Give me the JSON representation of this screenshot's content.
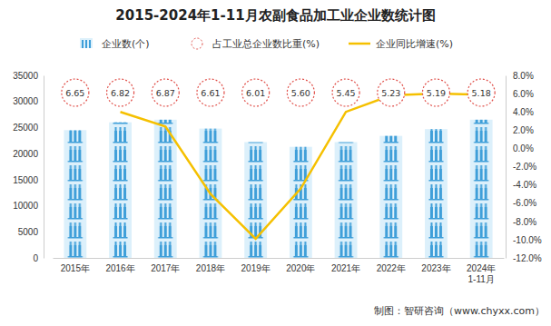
{
  "chart_data": {
    "type": "bar",
    "title": "2015-2024年1-11月农副食品加工业企业数统计图",
    "categories": [
      "2015年",
      "2016年",
      "2017年",
      "2018年",
      "2019年",
      "2020年",
      "2021年",
      "2022年",
      "2023年",
      "2024年\n1-11月"
    ],
    "series": [
      {
        "name": "企业数(个)",
        "type": "bar",
        "color": "#3f9fd9",
        "values": [
          24500,
          26000,
          26500,
          24800,
          22200,
          21300,
          22200,
          23400,
          24700,
          26500
        ]
      },
      {
        "name": "占工业总企业数比重(%)",
        "type": "scatter",
        "marker": "circle",
        "line_style": "dashed",
        "color": "#e0504a",
        "data_labels": true,
        "values": [
          6.65,
          6.82,
          6.87,
          6.61,
          6.01,
          5.6,
          5.45,
          5.23,
          5.19,
          5.18
        ],
        "value_labels": [
          "6.65",
          "6.82",
          "6.87",
          "6.61",
          "6.01",
          "5.60",
          "5.45",
          "5.23",
          "5.19",
          "5.18"
        ]
      },
      {
        "name": "企业同比增速(%)",
        "type": "line",
        "color": "#f5c000",
        "axis": "y2",
        "values": [
          null,
          4.0,
          2.4,
          -5.0,
          -9.9,
          -4.4,
          4.0,
          5.8,
          6.0,
          5.9
        ]
      }
    ],
    "ylim": [
      0,
      35000
    ],
    "yticks": [
      0,
      5000,
      10000,
      15000,
      20000,
      25000,
      30000,
      35000
    ],
    "y2lim": [
      -12,
      8
    ],
    "y2ticks": [
      {
        "value": -12,
        "label": "-12.0%"
      },
      {
        "value": -10,
        "label": "-10.0%"
      },
      {
        "value": -8,
        "label": "-8.0%"
      },
      {
        "value": -6,
        "label": "-6.0%"
      },
      {
        "value": -4,
        "label": "-4.0%"
      },
      {
        "value": -2,
        "label": "-2.0%"
      },
      {
        "value": 0,
        "label": "0.0%"
      },
      {
        "value": 2,
        "label": "2.0%"
      },
      {
        "value": 4,
        "label": "4.0%"
      },
      {
        "value": 6,
        "label": "6.0%"
      },
      {
        "value": 8,
        "label": "8.0%"
      }
    ],
    "legend": "top",
    "grid": false,
    "annotations": [
      "制图：智研咨询（www.chyxx.com）"
    ]
  }
}
